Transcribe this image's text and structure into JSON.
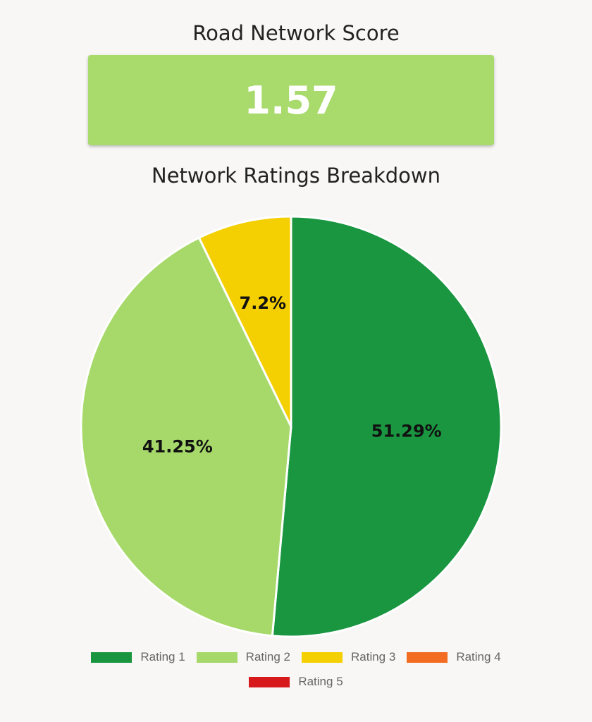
{
  "score": {
    "title": "Road Network Score",
    "value": "1.57",
    "color": "#a8da6c"
  },
  "chart_data": {
    "type": "pie",
    "title": "Network Ratings Breakdown",
    "slices": [
      {
        "label": "Rating 1",
        "value": 51.29,
        "display": "51.29%",
        "color": "#1a9641"
      },
      {
        "label": "Rating 2",
        "value": 41.25,
        "display": "41.25%",
        "color": "#a6d96a"
      },
      {
        "label": "Rating 3",
        "value": 7.2,
        "display": "7.2%",
        "color": "#f4cf01"
      },
      {
        "label": "Rating 4",
        "value": 0,
        "display": "",
        "color": "#f26c21"
      },
      {
        "label": "Rating 5",
        "value": 0,
        "display": "",
        "color": "#d7191c"
      }
    ],
    "legend_position": "bottom",
    "start_angle": "12 o'clock, clockwise"
  }
}
